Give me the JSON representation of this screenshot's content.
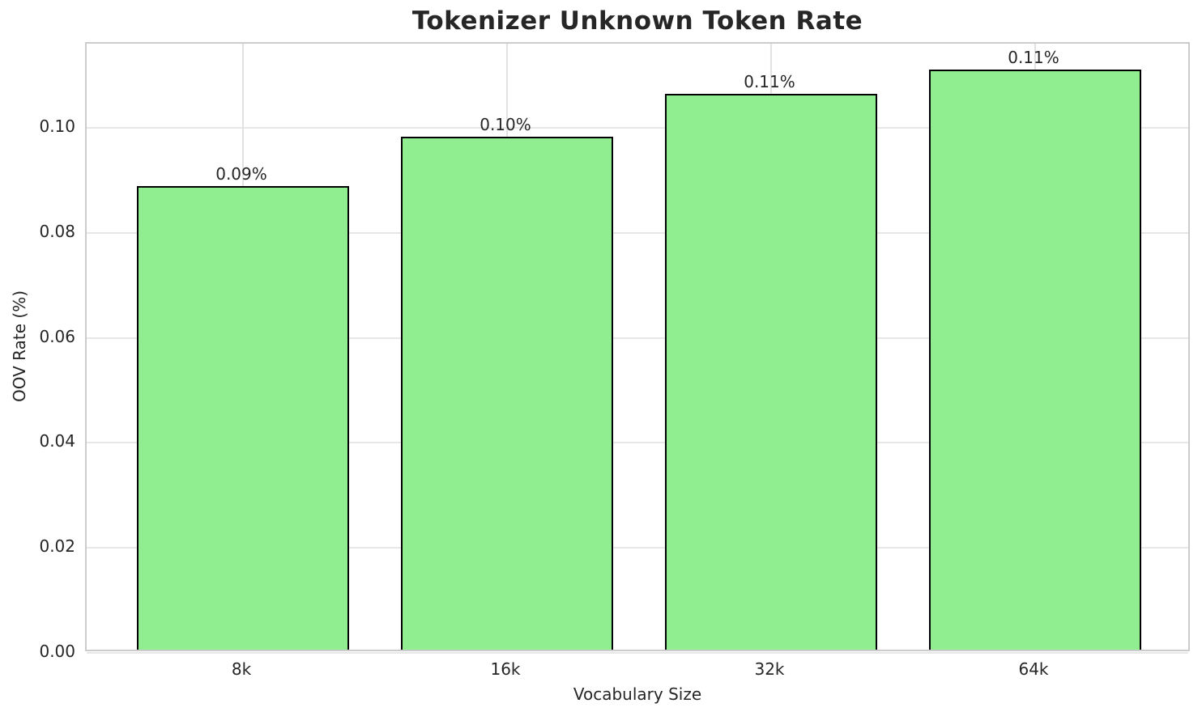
{
  "chart_data": {
    "type": "bar",
    "title": "Tokenizer Unknown Token Rate",
    "xlabel": "Vocabulary Size",
    "ylabel": "OOV Rate (%)",
    "categories": [
      "8k",
      "16k",
      "32k",
      "64k"
    ],
    "values": [
      0.0883,
      0.0976,
      0.1059,
      0.1104
    ],
    "bar_labels": [
      "0.09%",
      "0.10%",
      "0.11%",
      "0.11%"
    ],
    "y_tick_labels": [
      "0.00",
      "0.02",
      "0.04",
      "0.06",
      "0.08",
      "0.10"
    ],
    "y_tick_values": [
      0.0,
      0.02,
      0.04,
      0.06,
      0.08,
      0.1
    ],
    "ylim": [
      0,
      0.116
    ],
    "grid": true,
    "legend": false,
    "bar_color": "#90EE90",
    "bar_edge_color": "#000000"
  }
}
